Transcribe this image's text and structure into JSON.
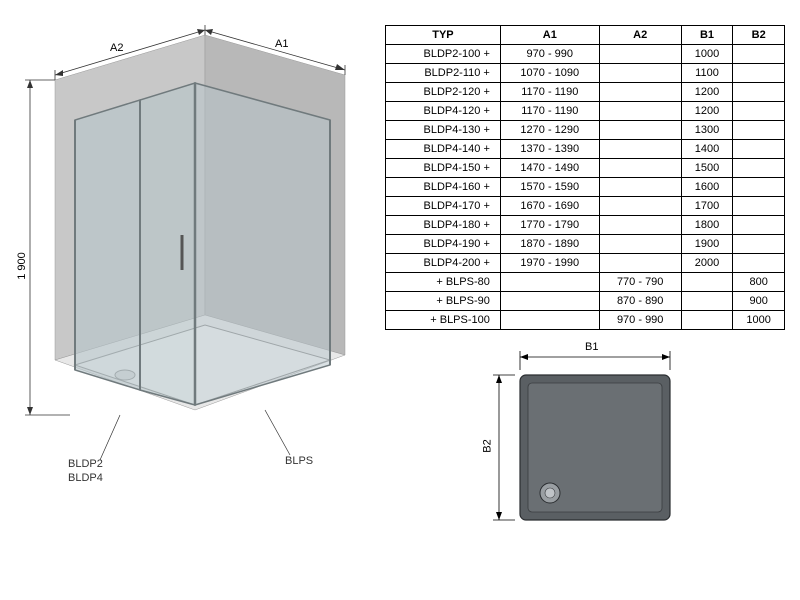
{
  "table": {
    "headers": [
      "TYP",
      "A1",
      "A2",
      "B1",
      "B2"
    ],
    "rows": [
      [
        "BLDP2-100 +",
        "970 - 990",
        "",
        "1000",
        ""
      ],
      [
        "BLDP2-110 +",
        "1070 - 1090",
        "",
        "1100",
        ""
      ],
      [
        "BLDP2-120 +",
        "1170 - 1190",
        "",
        "1200",
        ""
      ],
      [
        "BLDP4-120 +",
        "1170 - 1190",
        "",
        "1200",
        ""
      ],
      [
        "BLDP4-130 +",
        "1270 - 1290",
        "",
        "1300",
        ""
      ],
      [
        "BLDP4-140 +",
        "1370 - 1390",
        "",
        "1400",
        ""
      ],
      [
        "BLDP4-150 +",
        "1470 - 1490",
        "",
        "1500",
        ""
      ],
      [
        "BLDP4-160 +",
        "1570 - 1590",
        "",
        "1600",
        ""
      ],
      [
        "BLDP4-170 +",
        "1670 - 1690",
        "",
        "1700",
        ""
      ],
      [
        "BLDP4-180 +",
        "1770 - 1790",
        "",
        "1800",
        ""
      ],
      [
        "BLDP4-190 +",
        "1870 - 1890",
        "",
        "1900",
        ""
      ],
      [
        "BLDP4-200 +",
        "1970 - 1990",
        "",
        "2000",
        ""
      ],
      [
        "+ BLPS-80",
        "",
        "770 - 790",
        "",
        "800"
      ],
      [
        "+ BLPS-90",
        "",
        "870 - 890",
        "",
        "900"
      ],
      [
        "+ BLPS-100",
        "",
        "970 - 990",
        "",
        "1000"
      ]
    ]
  },
  "iso": {
    "height_label": "1 900",
    "a1_label": "A1",
    "a2_label": "A2",
    "part1": "BLDP2",
    "part2": "BLDP4",
    "part3": "BLPS",
    "colors": {
      "wall_light": "#d8d8d8",
      "wall_mid": "#c8c8c8",
      "wall_dark": "#b8b8b8",
      "floor": "#e8e8e8",
      "glass": "#b5c4c9",
      "glass_edge": "#707a7d",
      "frame": "#888888",
      "line": "#333333"
    }
  },
  "tray": {
    "b1_label": "B1",
    "b2_label": "B2",
    "colors": {
      "fill": "#5a5f63",
      "fill_light": "#777c80",
      "edge": "#2a2d30",
      "line": "#000000"
    }
  }
}
